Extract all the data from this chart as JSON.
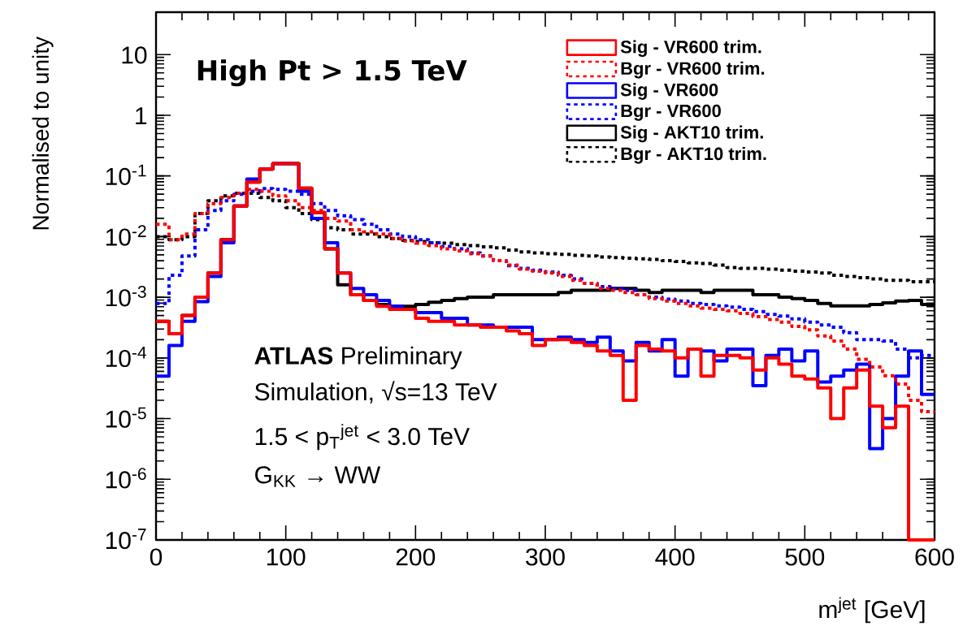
{
  "chart_data": {
    "type": "histogram",
    "title": "High Pt > 1.5 TeV",
    "xlabel": "m$^{jet}$ [GeV]",
    "ylabel": "Normalised to unity",
    "annotations": [
      "**ATLAS** Preliminary",
      "Simulation, √s=13 TeV",
      "1.5 < p$_{T}$$^{jet}$ < 3.0 TeV",
      "G$_{KK}$ → WW"
    ],
    "log": "y",
    "legend": "top right",
    "marker": "none",
    "xlim": [
      0,
      600
    ],
    "xticks": [
      0,
      100,
      200,
      300,
      400,
      500,
      600
    ],
    "ylim": [
      1e-07,
      50
    ],
    "yticks": [
      {
        "value": 1e-07,
        "label": "10$^{-7}$"
      },
      {
        "value": 1e-06,
        "label": "10$^{-6}$"
      },
      {
        "value": 1e-05,
        "label": "10$^{-5}$"
      },
      {
        "value": 0.0001,
        "label": "10$^{-4}$"
      },
      {
        "value": 0.001,
        "label": "10$^{-3}$"
      },
      {
        "value": 0.01,
        "label": "10$^{-2}$"
      },
      {
        "value": 0.1,
        "label": "10$^{-1}$"
      },
      1,
      10
    ],
    "bins": [
      0,
      10,
      20,
      30,
      40,
      50,
      60,
      70,
      80,
      90,
      100,
      110,
      120,
      130,
      140,
      150,
      160,
      170,
      180,
      190,
      200,
      210,
      220,
      230,
      240,
      250,
      260,
      270,
      280,
      290,
      300,
      310,
      320,
      330,
      340,
      350,
      360,
      370,
      380,
      390,
      400,
      410,
      420,
      430,
      440,
      450,
      460,
      470,
      480,
      490,
      500,
      510,
      520,
      530,
      540,
      550,
      560,
      570,
      580,
      590,
      600
    ],
    "series": [
      {
        "name": "Sig - VR600 trim.",
        "color": "#ff0000",
        "line_style": "solid",
        "values": [
          0.0004,
          0.00025,
          0.0005,
          0.001,
          0.0025,
          0.0089,
          0.032,
          0.079,
          0.13,
          0.16,
          0.16,
          0.063,
          0.025,
          0.0063,
          0.0025,
          0.0011,
          0.00089,
          0.00071,
          0.00063,
          0.00063,
          0.00045,
          0.0004,
          0.0004,
          0.00035,
          0.00035,
          0.00032,
          0.00032,
          0.00028,
          0.00025,
          0.00016,
          0.0002,
          0.0002,
          0.00018,
          0.00016,
          0.00013,
          0.00011,
          2e-05,
          0.00016,
          0.00014,
          0.00013,
          0.0001,
          0.00014,
          5e-05,
          0.00011,
          0.00011,
          0.0001,
          6.3e-05,
          0.0001,
          7.9e-05,
          5e-05,
          4.5e-05,
          3.2e-05,
          1e-05,
          3.2e-05,
          6.3e-05,
          1.6e-05,
          7.1e-06,
          1.6e-05,
          1e-07,
          1e-07
        ]
      },
      {
        "name": "Bgr - VR600 trim.",
        "color": "#ff0000",
        "line_style": "dotted",
        "values": [
          0.016,
          0.0089,
          0.011,
          0.024,
          0.035,
          0.044,
          0.052,
          0.06,
          0.056,
          0.047,
          0.039,
          0.03,
          0.027,
          0.02,
          0.018,
          0.013,
          0.012,
          0.011,
          0.0093,
          0.0085,
          0.0078,
          0.0071,
          0.0063,
          0.0058,
          0.0052,
          0.0048,
          0.004,
          0.0034,
          0.0029,
          0.0027,
          0.0025,
          0.0022,
          0.0019,
          0.0017,
          0.0014,
          0.0013,
          0.0012,
          0.0011,
          0.00095,
          0.00087,
          0.00079,
          0.00072,
          0.00066,
          0.00063,
          0.0006,
          0.00054,
          0.00048,
          0.00043,
          0.00039,
          0.00033,
          0.00029,
          0.00023,
          0.00019,
          0.00014,
          9.5e-05,
          7.1e-05,
          5.1e-05,
          3.7e-05,
          2e-05,
          1.3e-05
        ]
      },
      {
        "name": "Sig - VR600",
        "color": "#0000ff",
        "line_style": "solid",
        "values": [
          5e-05,
          0.00016,
          0.0004,
          0.00085,
          0.0022,
          0.0079,
          0.032,
          0.089,
          0.13,
          0.16,
          0.16,
          0.056,
          0.02,
          0.0079,
          0.0025,
          0.0014,
          0.0011,
          0.00089,
          0.00071,
          0.00063,
          0.00056,
          0.00056,
          0.00045,
          0.00045,
          0.00035,
          0.00035,
          0.00032,
          0.00032,
          0.00032,
          0.0002,
          0.0002,
          0.00022,
          0.0002,
          0.00018,
          0.00022,
          0.00013,
          8.9e-05,
          0.00018,
          0.00013,
          0.0002,
          5e-05,
          0.00014,
          0.00013,
          8.9e-05,
          0.00014,
          0.00014,
          3.5e-05,
          0.00011,
          0.00014,
          8.9e-05,
          0.00013,
          4e-05,
          5e-05,
          6.3e-05,
          7.9e-05,
          3.2e-06,
          1e-05,
          5e-05,
          0.00013,
          2.5e-05
        ]
      },
      {
        "name": "Bgr - VR600",
        "color": "#0000ff",
        "line_style": "dotted",
        "values": [
          0.00079,
          0.0023,
          0.0048,
          0.013,
          0.027,
          0.039,
          0.05,
          0.056,
          0.062,
          0.06,
          0.056,
          0.05,
          0.035,
          0.027,
          0.022,
          0.019,
          0.016,
          0.013,
          0.011,
          0.01,
          0.0089,
          0.0079,
          0.0069,
          0.0063,
          0.0054,
          0.0048,
          0.004,
          0.0033,
          0.003,
          0.0028,
          0.0026,
          0.0023,
          0.002,
          0.0017,
          0.0015,
          0.0014,
          0.0013,
          0.0011,
          0.001,
          0.00093,
          0.00087,
          0.00079,
          0.00076,
          0.00072,
          0.00069,
          0.00063,
          0.00058,
          0.00052,
          0.00049,
          0.00044,
          0.00039,
          0.00035,
          0.00032,
          0.00026,
          0.0002,
          0.0002,
          0.00019,
          0.00014,
          0.0001,
          0.00011
        ]
      },
      {
        "name": "Sig - AKT10 trim.",
        "color": "#000000",
        "line_style": "solid",
        "values": [
          0.0004,
          0.00025,
          0.0005,
          0.001,
          0.0025,
          0.0089,
          0.032,
          0.079,
          0.13,
          0.16,
          0.16,
          0.063,
          0.025,
          0.0063,
          0.0016,
          0.0011,
          0.00089,
          0.00076,
          0.00071,
          0.00071,
          0.00076,
          0.00083,
          0.00089,
          0.00095,
          0.001,
          0.001,
          0.0011,
          0.0011,
          0.0011,
          0.0011,
          0.0011,
          0.0012,
          0.0013,
          0.0013,
          0.0013,
          0.0014,
          0.0014,
          0.0013,
          0.0012,
          0.0013,
          0.0013,
          0.0013,
          0.0012,
          0.0013,
          0.0013,
          0.0013,
          0.0011,
          0.0011,
          0.001,
          0.00095,
          0.00089,
          0.00079,
          0.00072,
          0.00072,
          0.00072,
          0.00076,
          0.00081,
          0.00087,
          0.00089,
          0.00076
        ]
      },
      {
        "name": "Bgr - AKT10 trim.",
        "color": "#000000",
        "line_style": "dotted",
        "values": [
          0.01,
          0.0089,
          0.01,
          0.024,
          0.039,
          0.047,
          0.052,
          0.052,
          0.044,
          0.039,
          0.03,
          0.024,
          0.019,
          0.014,
          0.013,
          0.011,
          0.011,
          0.01,
          0.0093,
          0.0087,
          0.0083,
          0.0079,
          0.0078,
          0.0074,
          0.0071,
          0.0068,
          0.0065,
          0.006,
          0.0056,
          0.0054,
          0.0052,
          0.0051,
          0.0049,
          0.0048,
          0.0046,
          0.0045,
          0.0044,
          0.0043,
          0.0042,
          0.004,
          0.0039,
          0.0037,
          0.0036,
          0.0034,
          0.0031,
          0.003,
          0.003,
          0.0029,
          0.0028,
          0.0027,
          0.0026,
          0.0025,
          0.0023,
          0.0022,
          0.0021,
          0.002,
          0.0019,
          0.0019,
          0.0018,
          0.0018
        ]
      }
    ]
  }
}
